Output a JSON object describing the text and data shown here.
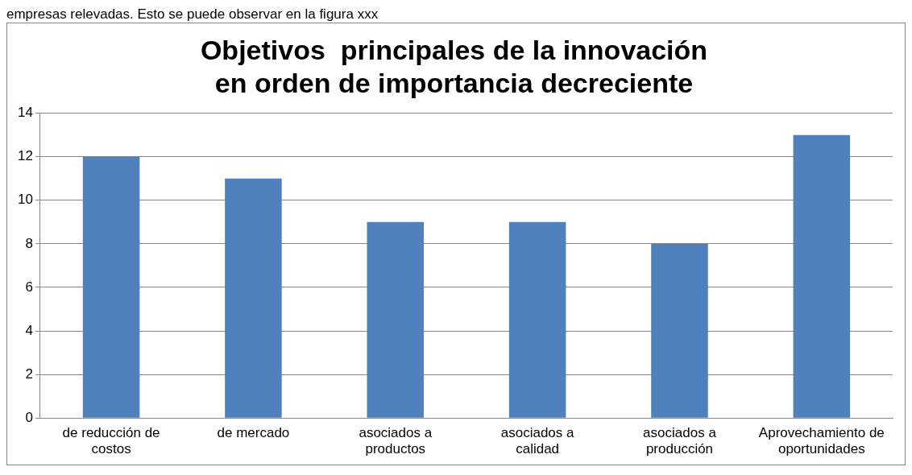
{
  "chart_data": {
    "type": "bar",
    "title": "Objetivos  principales de la innovación\nen orden de importancia decreciente",
    "annotations": [
      "empresas relevadas. Esto se puede observar en la figura xxx"
    ],
    "categories": [
      "de reducción de costos",
      "de mercado",
      "asociados a productos",
      "asociados a calidad",
      "asociados a producción",
      "Aprovechamiento de oportunidades"
    ],
    "values": [
      12,
      11,
      9,
      9,
      8,
      13
    ],
    "color": "#4f81bd",
    "ylim": [
      0,
      14
    ],
    "yticks": [
      0,
      2,
      4,
      6,
      8,
      10,
      12,
      14
    ],
    "grid": "y",
    "legend": false
  }
}
